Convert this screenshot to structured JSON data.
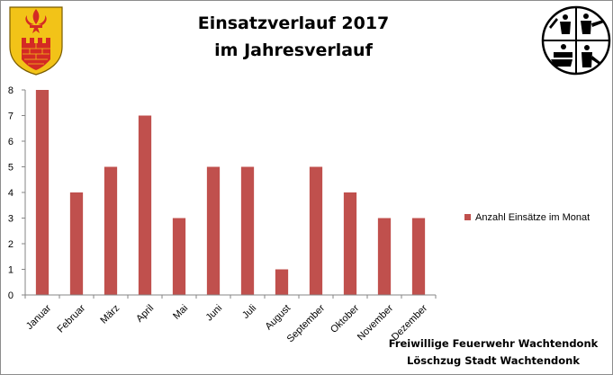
{
  "chart_data": {
    "type": "bar",
    "title": [
      "Einsatzverlauf 2017",
      "im Jahresverlauf"
    ],
    "categories": [
      "Januar",
      "Februar",
      "März",
      "April",
      "Mai",
      "Juni",
      "Juli",
      "August",
      "September",
      "Oktober",
      "November",
      "Dezember"
    ],
    "series": [
      {
        "name": "Anzahl Einsätze im Monat",
        "values": [
          8,
          4,
          5,
          7,
          3,
          5,
          5,
          1,
          5,
          4,
          3,
          3
        ],
        "color": "#c0504d"
      }
    ],
    "ylim": [
      0,
      8
    ],
    "yticks": [
      "0",
      "1",
      "2",
      "3",
      "4",
      "5",
      "6",
      "7",
      "8"
    ],
    "grid": false,
    "legend_position": "right"
  },
  "footer": {
    "line1": "Freiwillige Feuerwehr Wachtendonk",
    "line2": "Löschzug Stadt Wachtendonk"
  },
  "logos": {
    "left": "coat-of-arms-icon",
    "right": "fire-brigade-emblem-icon"
  },
  "colors": {
    "bar": "#c0504d",
    "axis": "#868686",
    "shield_yellow": "#f2c318",
    "shield_red": "#d42a24"
  }
}
